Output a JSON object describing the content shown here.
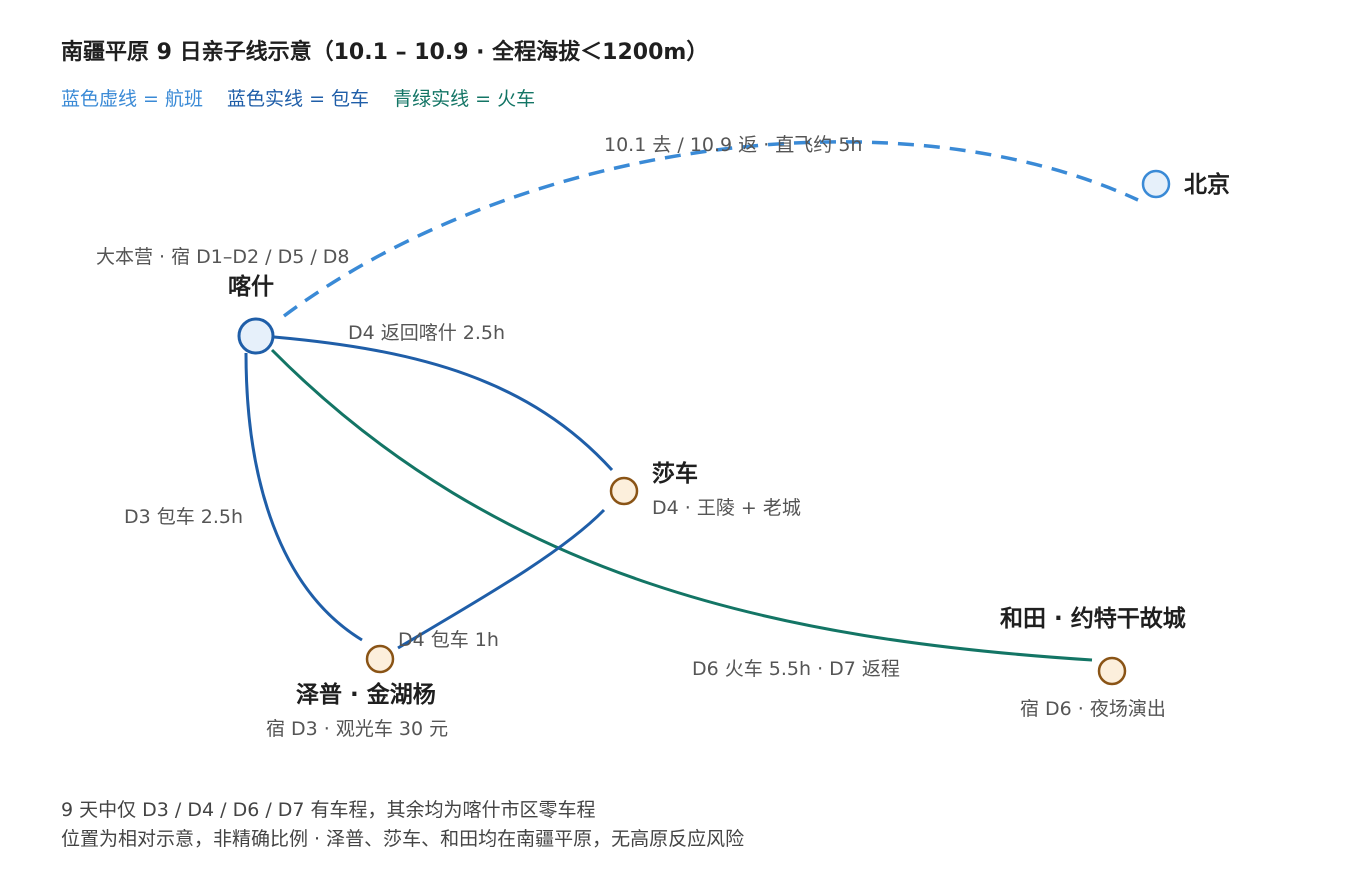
{
  "title": "南疆平原 9 日亲子线示意（10.1 – 10.9 · 全程海拔＜1200m）",
  "legend": {
    "flight": "蓝色虚线 = 航班",
    "car": "蓝色实线 = 包车",
    "train": "青绿实线 = 火车"
  },
  "colors": {
    "flight": "#3a8ad6",
    "car": "#1f5ea8",
    "train": "#137565",
    "hub_fill": "#e6f0fa",
    "stop_fill": "#fcefdc",
    "stop_stroke": "#8a5416"
  },
  "nodes": {
    "beijing": {
      "name": "北京"
    },
    "kashgar": {
      "name": "喀什",
      "note": "大本营 · 宿 D1–D2 / D5 / D8"
    },
    "shache": {
      "name": "莎车",
      "note": "D4 · 王陵 + 老城"
    },
    "zepu": {
      "name": "泽普 · 金湖杨",
      "note": "宿 D3 · 观光车 30 元"
    },
    "hotan": {
      "name": "和田 · 约特干故城",
      "note": "宿 D6 · 夜场演出"
    }
  },
  "edges": {
    "flight": "10.1 去 / 10.9 返 · 直飞约 5h",
    "kashgar_shache": "D4 返回喀什 2.5h",
    "kashgar_zepu": "D3 包车 2.5h",
    "zepu_shache": "D4 包车 1h",
    "kashgar_hotan": "D6 火车 5.5h · D7 返程"
  },
  "footer": {
    "line1": "9 天中仅 D3 / D4 / D6 / D7 有车程，其余均为喀什市区零车程",
    "line2": "位置为相对示意，非精确比例 · 泽普、莎车、和田均在南疆平原，无高原反应风险"
  }
}
